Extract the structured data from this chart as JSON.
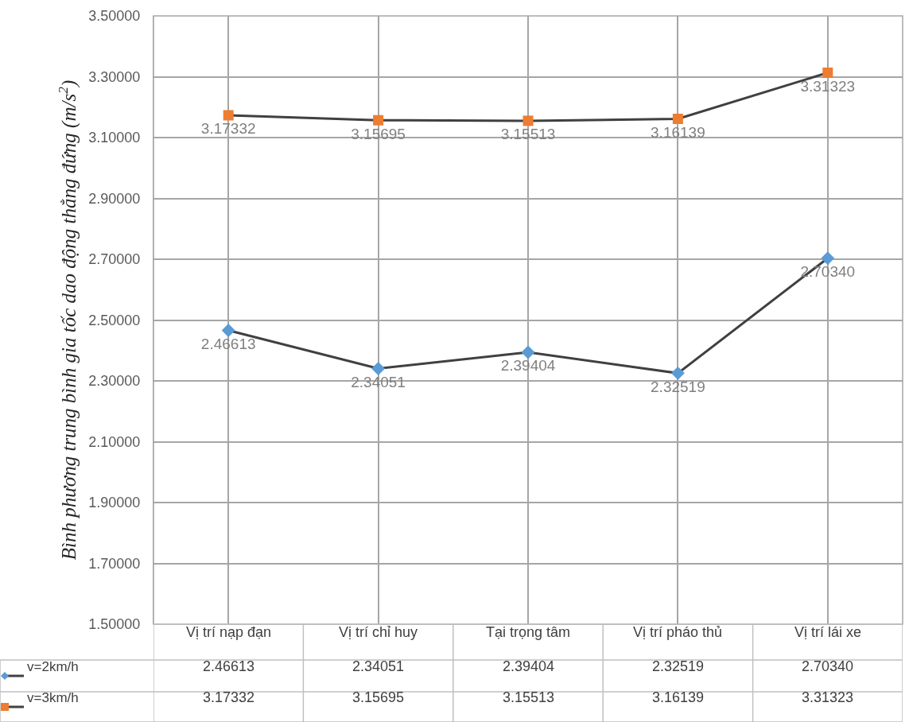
{
  "chart_data": {
    "type": "line",
    "ylabel": "Bình phương trung bình gia tốc dao động thẳng đứng (m/s$^{2}$)",
    "categories": [
      "Vị trí nạp đạn",
      "Vị trí chỉ huy",
      "Tại trọng tâm",
      "Vị trí pháo thủ",
      "Vị trí lái xe"
    ],
    "series": [
      {
        "name": "v=2km/h",
        "color": "#5b9bd5",
        "marker": "diamond",
        "values": [
          2.46613,
          2.34051,
          2.39404,
          2.32519,
          2.7034
        ],
        "value_labels": [
          "2.46613",
          "2.34051",
          "2.39404",
          "2.32519",
          "2.70340"
        ]
      },
      {
        "name": "v=3km/h",
        "color": "#ed7d31",
        "marker": "square",
        "values": [
          3.17332,
          3.15695,
          3.15513,
          3.16139,
          3.31323
        ],
        "value_labels": [
          "3.17332",
          "3.15695",
          "3.15513",
          "3.16139",
          "3.31323"
        ]
      }
    ],
    "ylim": [
      1.5,
      3.5
    ],
    "yticks": [
      {
        "value": 1.5,
        "label": "1.50000"
      },
      {
        "value": 1.7,
        "label": "1.70000"
      },
      {
        "value": 1.9,
        "label": "1.90000"
      },
      {
        "value": 2.1,
        "label": "2.10000"
      },
      {
        "value": 2.3,
        "label": "2.30000"
      },
      {
        "value": 2.5,
        "label": "2.50000"
      },
      {
        "value": 2.7,
        "label": "2.70000"
      },
      {
        "value": 2.9,
        "label": "2.90000"
      },
      {
        "value": 3.1,
        "label": "3.10000"
      },
      {
        "value": 3.3,
        "label": "3.30000"
      },
      {
        "value": 3.5,
        "label": "3.50000"
      }
    ],
    "grid": true,
    "legend": "bottom"
  }
}
